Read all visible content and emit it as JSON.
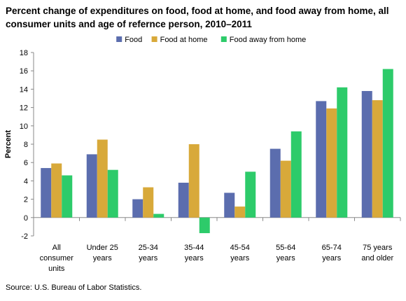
{
  "chart_data": {
    "type": "bar",
    "title": "Percent change of expenditures on food, food at home, and food away from home, all consumer units and age of refernce person, 2010–2011",
    "xlabel": "",
    "ylabel": "Percent",
    "ylim": [
      -2,
      18
    ],
    "yticks": [
      -2,
      0,
      2,
      4,
      6,
      8,
      10,
      12,
      14,
      16,
      18
    ],
    "grid": false,
    "legend_position": "top",
    "categories": [
      [
        "All",
        "consumer",
        "units"
      ],
      [
        "Under 25",
        "years"
      ],
      [
        "25-34",
        "years"
      ],
      [
        "35-44",
        "years"
      ],
      [
        "45-54",
        "years"
      ],
      [
        "55-64",
        "years"
      ],
      [
        "65-74",
        "years"
      ],
      [
        "75 years",
        "and older"
      ]
    ],
    "series": [
      {
        "name": "Food",
        "color": "#5B6DAE",
        "values": [
          5.4,
          6.9,
          2.0,
          3.8,
          2.7,
          7.5,
          12.7,
          13.8
        ]
      },
      {
        "name": "Food at home",
        "color": "#D8A93A",
        "values": [
          5.9,
          8.5,
          3.3,
          8.0,
          1.2,
          6.2,
          11.9,
          12.8
        ]
      },
      {
        "name": "Food away  from home",
        "color": "#2DCB6A",
        "values": [
          4.6,
          5.2,
          0.4,
          -1.7,
          5.0,
          9.4,
          14.2,
          16.2
        ]
      }
    ]
  },
  "source": "Source: U.S. Bureau of Labor Statistics."
}
